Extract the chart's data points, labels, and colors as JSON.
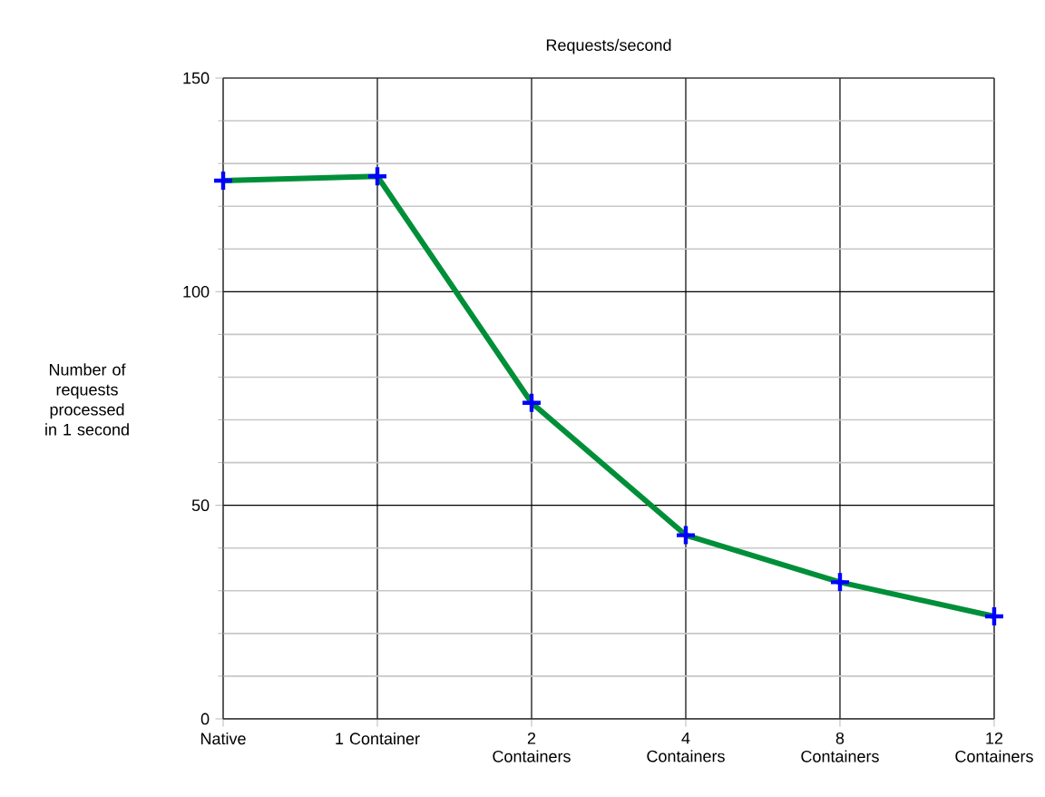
{
  "chart_data": {
    "type": "line",
    "title": "Requests/second",
    "ylabel": "Number of requests processed in 1 second",
    "categories": [
      "Native",
      "1 Container",
      "2 Containers",
      "4 Containers",
      "8 Containers",
      "12 Containers"
    ],
    "series": [
      {
        "color": "#008f39",
        "values": [
          126,
          127,
          74,
          43,
          32,
          24
        ]
      }
    ],
    "ylim": [
      0,
      150
    ],
    "yticks": [
      0,
      {
        "value": 10,
        "label": null
      },
      {
        "value": 20,
        "label": null
      },
      {
        "value": 30,
        "label": null
      },
      {
        "value": 40,
        "label": null
      },
      50,
      {
        "value": 60,
        "label": null
      },
      {
        "value": 70,
        "label": null
      },
      {
        "value": 80,
        "label": null
      },
      {
        "value": 90,
        "label": null
      },
      100,
      {
        "value": 110,
        "label": null
      },
      {
        "value": 120,
        "label": null
      },
      {
        "value": 130,
        "label": null
      },
      {
        "value": 140,
        "label": null
      },
      150
    ],
    "grid": true,
    "marker": "cross",
    "line_style": "solid"
  }
}
